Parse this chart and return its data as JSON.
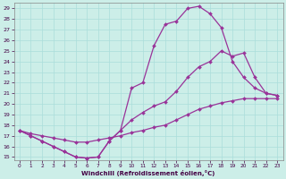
{
  "xlabel": "Windchill (Refroidissement éolien,°C)",
  "bg_color": "#cceee8",
  "grid_color": "#aaddda",
  "line_color": "#993399",
  "xlim": [
    -0.5,
    23.5
  ],
  "ylim": [
    14.7,
    29.5
  ],
  "xticks": [
    0,
    1,
    2,
    3,
    4,
    5,
    6,
    7,
    8,
    9,
    10,
    11,
    12,
    13,
    14,
    15,
    16,
    17,
    18,
    19,
    20,
    21,
    22,
    23
  ],
  "yticks": [
    15,
    16,
    17,
    18,
    19,
    20,
    21,
    22,
    23,
    24,
    25,
    26,
    27,
    28,
    29
  ],
  "line1_x": [
    0,
    1,
    2,
    3,
    4,
    5,
    6,
    7,
    8,
    9,
    10,
    11,
    12,
    13,
    14,
    15,
    16,
    17,
    18,
    19,
    20,
    21,
    22,
    23
  ],
  "line1_y": [
    17.5,
    17.0,
    16.5,
    16.0,
    15.5,
    15.0,
    14.9,
    15.0,
    16.5,
    17.5,
    18.5,
    19.2,
    19.8,
    20.2,
    21.2,
    22.5,
    23.5,
    24.0,
    25.0,
    24.5,
    24.8,
    22.5,
    21.0,
    20.8
  ],
  "line2_x": [
    0,
    1,
    2,
    3,
    4,
    5,
    6,
    7,
    8,
    9,
    10,
    11,
    12,
    13,
    14,
    15,
    16,
    17,
    18,
    19,
    20,
    21,
    22,
    23
  ],
  "line2_y": [
    17.5,
    17.0,
    16.5,
    16.0,
    15.5,
    15.0,
    14.9,
    15.0,
    16.5,
    17.5,
    21.5,
    22.0,
    25.5,
    27.5,
    27.8,
    29.0,
    29.2,
    28.5,
    27.2,
    24.0,
    22.5,
    21.5,
    21.0,
    20.8
  ],
  "line3_x": [
    0,
    1,
    2,
    3,
    4,
    5,
    6,
    7,
    8,
    9,
    10,
    11,
    12,
    13,
    14,
    15,
    16,
    17,
    18,
    19,
    20,
    21,
    22,
    23
  ],
  "line3_y": [
    17.5,
    17.2,
    17.0,
    16.8,
    16.6,
    16.4,
    16.4,
    16.6,
    16.8,
    17.0,
    17.3,
    17.5,
    17.8,
    18.0,
    18.5,
    19.0,
    19.5,
    19.8,
    20.1,
    20.3,
    20.5,
    20.5,
    20.5,
    20.5
  ]
}
